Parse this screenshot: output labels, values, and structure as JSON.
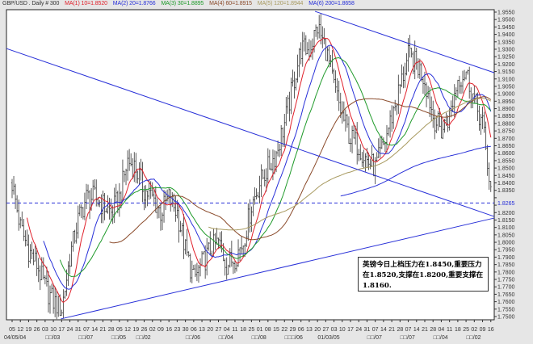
{
  "header": {
    "symbol": "GBP/USD . Daily # 300",
    "legend": [
      {
        "text": "MA(1) 10=1.8520",
        "color": "#e0202a"
      },
      {
        "text": "MA(2) 20=1.8766",
        "color": "#2830d8"
      },
      {
        "text": "MA(3) 30=1.8895",
        "color": "#1f9a2a"
      },
      {
        "text": "MA(4) 60=1.8915",
        "color": "#8a4a2a"
      },
      {
        "text": "MA(5) 120=1.8944",
        "color": "#a89a60"
      },
      {
        "text": "MA(6) 200=1.8658",
        "color": "#2830d8"
      }
    ]
  },
  "annotation": "英镑今日上档压力在1.8450,重要压力在1.8520,支撑在1.8200,重要支撑在1.8160.",
  "chart_data": {
    "type": "ohlc",
    "ylim": [
      1.75,
      1.955
    ],
    "ytick_step": 0.005,
    "current_price": {
      "label": "1.8265",
      "value": 1.8265,
      "color": "#2830d8"
    },
    "x_week_labels": [
      "05",
      "12",
      "19",
      "26",
      "03",
      "10",
      "17",
      "24",
      "31",
      "07",
      "14",
      "21",
      "28",
      "05",
      "12",
      "19",
      "26",
      "02",
      "09",
      "16",
      "23",
      "30",
      "06",
      "13",
      "20",
      "27",
      "04",
      "11",
      "18",
      "25",
      "01",
      "08",
      "15",
      "22",
      "29",
      "06",
      "13",
      "20",
      "27",
      "03",
      "10",
      "17",
      "24",
      "31",
      "07",
      "14",
      "21",
      "28",
      "07",
      "14",
      "21",
      "28",
      "04",
      "11",
      "18",
      "25",
      "02",
      "09",
      "16"
    ],
    "x_month_labels": [
      {
        "week": 0,
        "text": "04/05/04"
      },
      {
        "week": 5,
        "text": "□□/03"
      },
      {
        "week": 9,
        "text": "□□/07"
      },
      {
        "week": 13,
        "text": "□□/05"
      },
      {
        "week": 16,
        "text": "□□/02"
      },
      {
        "week": 22,
        "text": "□□/06"
      },
      {
        "week": 26,
        "text": "□□/04"
      },
      {
        "week": 30,
        "text": "□□/08"
      },
      {
        "week": 34,
        "text": "□□□/06"
      },
      {
        "week": 38,
        "text": "01/03/05"
      },
      {
        "week": 44,
        "text": "□□/07"
      },
      {
        "week": 48,
        "text": "□□/07"
      },
      {
        "week": 52,
        "text": "□□/04"
      },
      {
        "week": 56,
        "text": "□□/02"
      }
    ],
    "weekly_close_approx": [
      1.84,
      1.81,
      1.795,
      1.785,
      1.77,
      1.76,
      1.755,
      1.79,
      1.815,
      1.83,
      1.83,
      1.825,
      1.82,
      1.83,
      1.855,
      1.85,
      1.835,
      1.83,
      1.82,
      1.83,
      1.82,
      1.795,
      1.775,
      1.785,
      1.795,
      1.8,
      1.785,
      1.79,
      1.8,
      1.825,
      1.84,
      1.85,
      1.86,
      1.88,
      1.905,
      1.93,
      1.93,
      1.945,
      1.93,
      1.905,
      1.885,
      1.87,
      1.865,
      1.855,
      1.85,
      1.865,
      1.885,
      1.905,
      1.925,
      1.92,
      1.91,
      1.885,
      1.875,
      1.885,
      1.91,
      1.915,
      1.895,
      1.88,
      1.835
    ],
    "moving_averages": [
      {
        "name": "MA(1) 10",
        "period": 10,
        "color": "#e0202a"
      },
      {
        "name": "MA(2) 20",
        "period": 20,
        "color": "#2830d8"
      },
      {
        "name": "MA(3) 30",
        "period": 30,
        "color": "#1f9a2a"
      },
      {
        "name": "MA(4) 60",
        "period": 60,
        "color": "#8a4a2a"
      },
      {
        "name": "MA(5) 120",
        "period": 120,
        "color": "#a89a60"
      },
      {
        "name": "MA(6) 200",
        "period": 200,
        "color": "#2830d8"
      }
    ],
    "trend_lines": [
      {
        "from": {
          "week": -0.7,
          "price": 1.9305
        },
        "to": {
          "week": 58.4,
          "price": 1.8174
        },
        "color": "#2830d8"
      },
      {
        "from": {
          "week": 5.9,
          "price": 1.7484
        },
        "to": {
          "week": 58.4,
          "price": 1.8163
        },
        "color": "#2830d8"
      },
      {
        "from": {
          "week": 36.7,
          "price": 1.9555
        },
        "to": {
          "week": 58.4,
          "price": 1.9142
        },
        "color": "#2830d8"
      }
    ]
  }
}
